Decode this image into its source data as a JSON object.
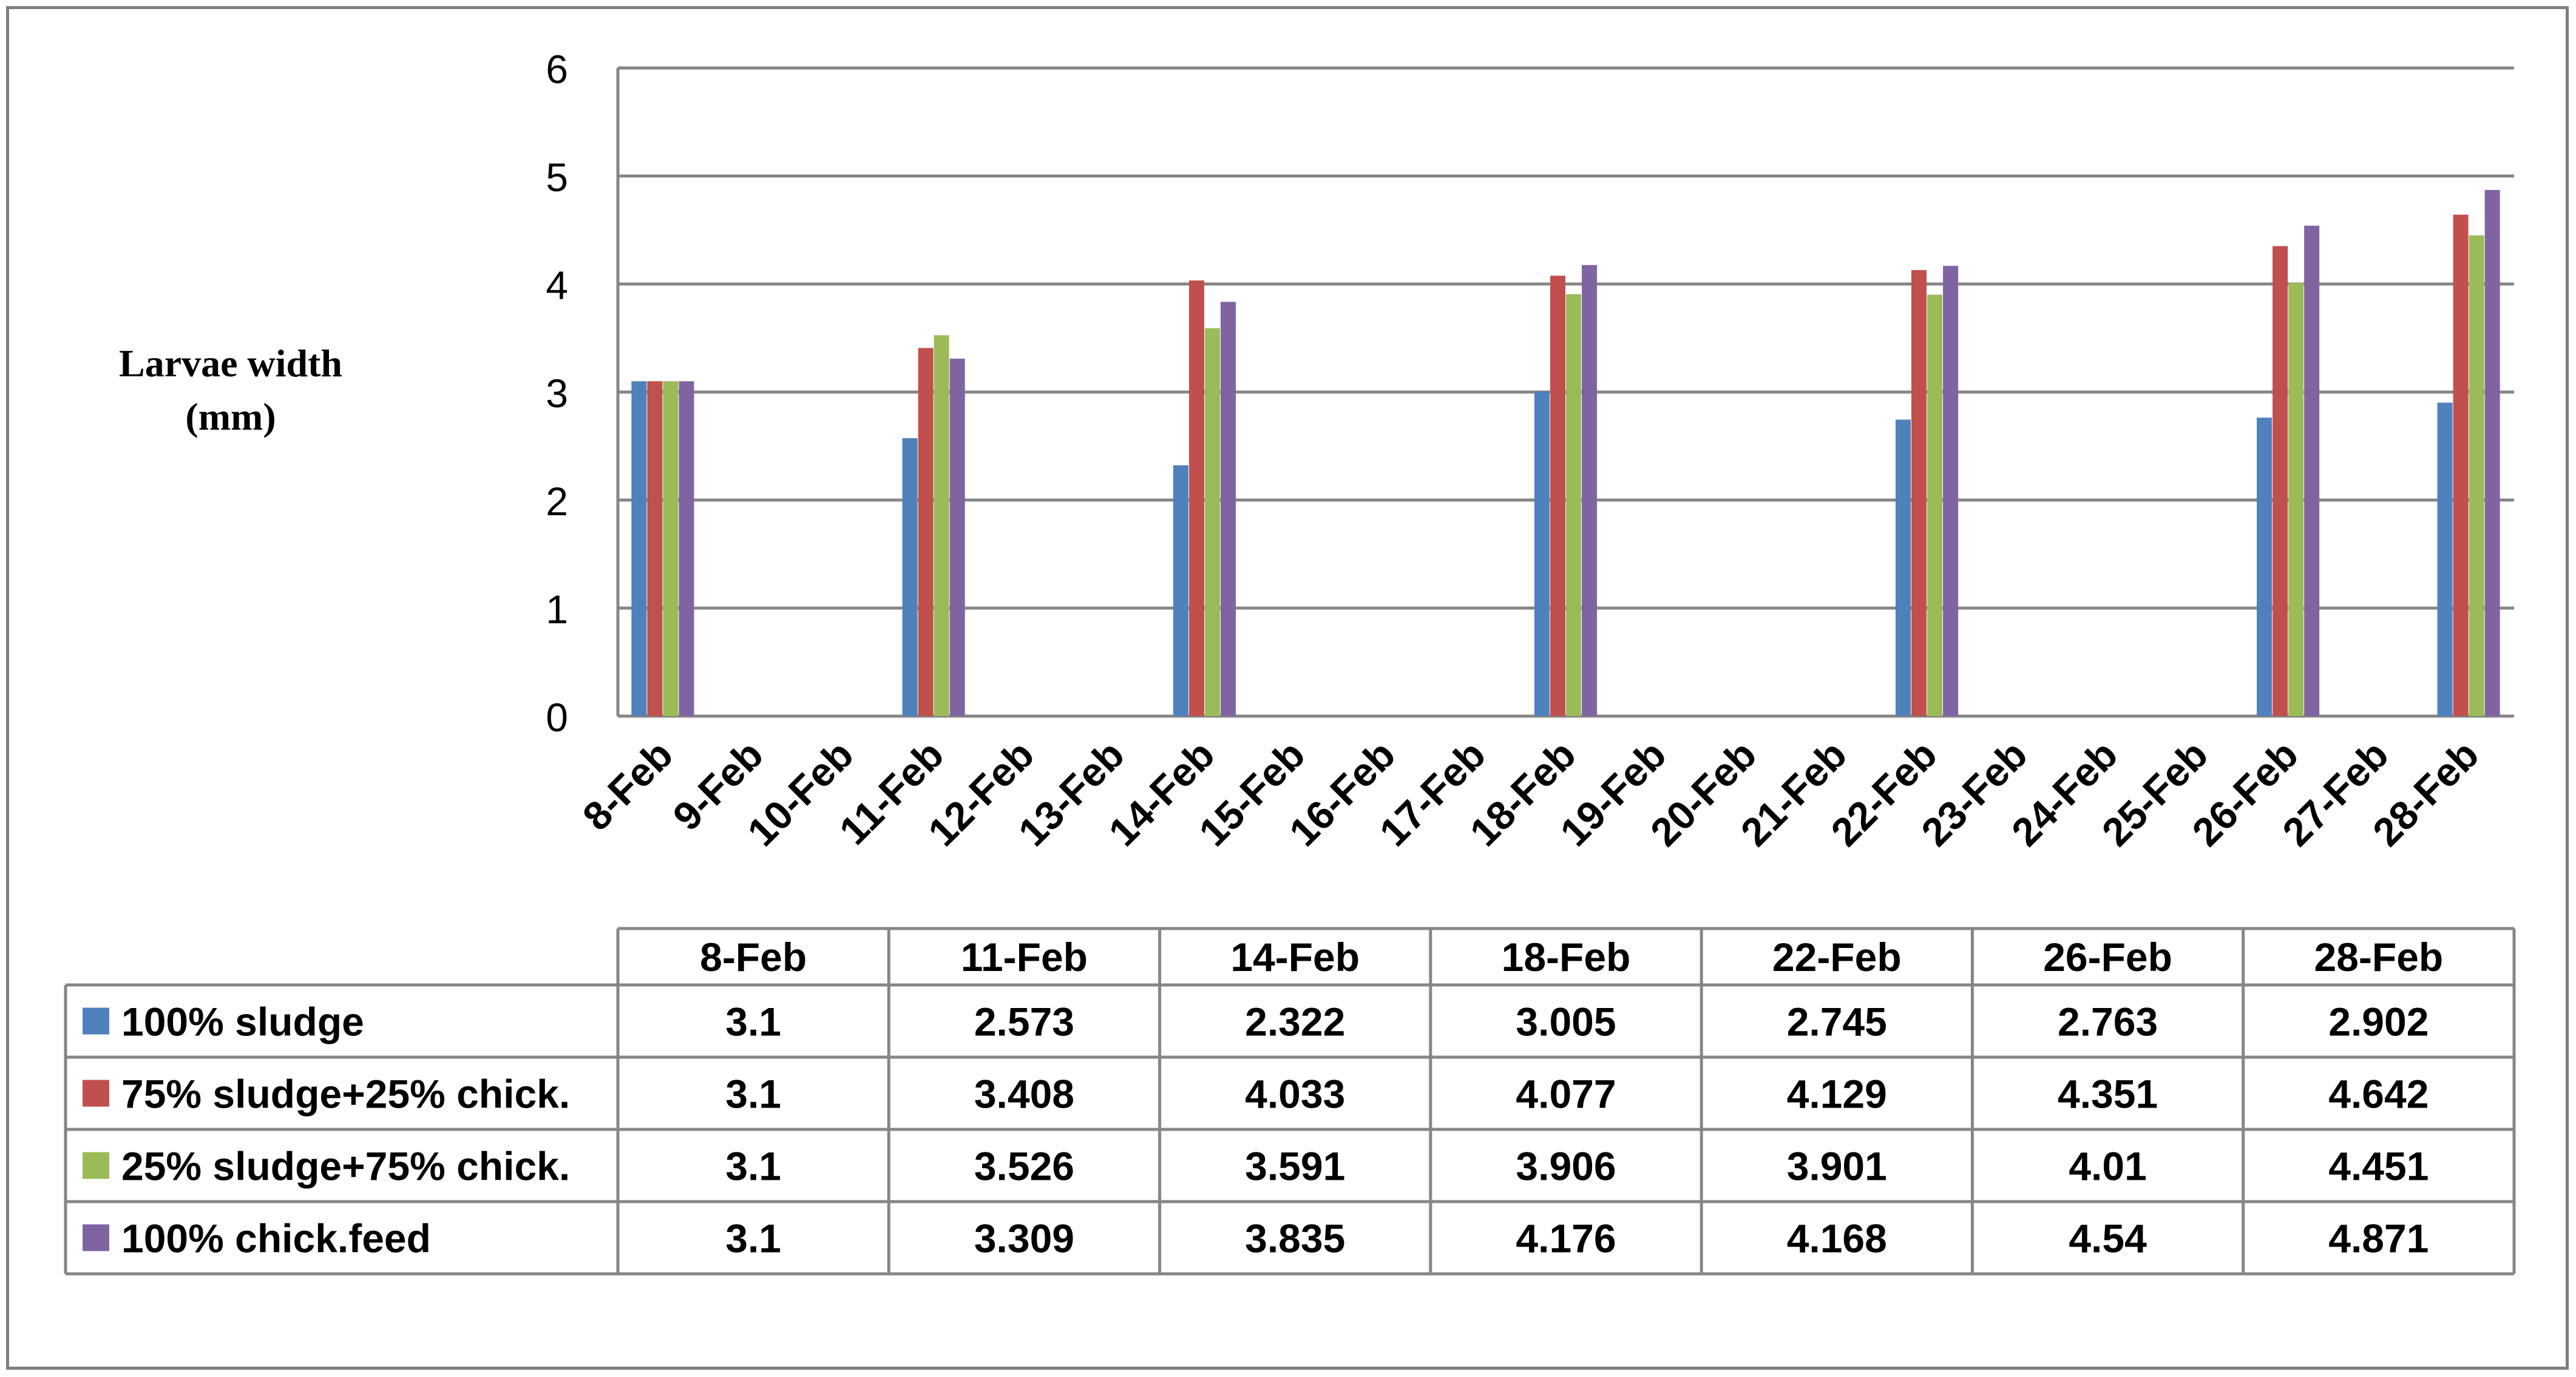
{
  "chart_data": {
    "type": "bar",
    "ylabel": "Larvae width (mm)",
    "ylabel_lines": [
      "Larvae width",
      "(mm)"
    ],
    "ylim": [
      0,
      6
    ],
    "yticks": [
      "0",
      "1",
      "2",
      "3",
      "4",
      "5",
      "6"
    ],
    "grid": true,
    "x_axis_labels": [
      "8-Feb",
      "9-Feb",
      "10-Feb",
      "11-Feb",
      "12-Feb",
      "13-Feb",
      "14-Feb",
      "15-Feb",
      "16-Feb",
      "17-Feb",
      "18-Feb",
      "19-Feb",
      "20-Feb",
      "21-Feb",
      "22-Feb",
      "23-Feb",
      "24-Feb",
      "25-Feb",
      "26-Feb",
      "27-Feb",
      "28-Feb"
    ],
    "categories": [
      "8-Feb",
      "11-Feb",
      "14-Feb",
      "18-Feb",
      "22-Feb",
      "26-Feb",
      "28-Feb"
    ],
    "series": [
      {
        "name": "100% sludge",
        "color": "#4f81bd",
        "values": [
          3.1,
          2.573,
          2.322,
          3.005,
          2.745,
          2.763,
          2.902
        ],
        "labels": [
          "3.1",
          "2.573",
          "2.322",
          "3.005",
          "2.745",
          "2.763",
          "2.902"
        ]
      },
      {
        "name": "75% sludge+25% chick.",
        "color": "#c0504d",
        "values": [
          3.1,
          3.408,
          4.033,
          4.077,
          4.129,
          4.351,
          4.642
        ],
        "labels": [
          "3.1",
          "3.408",
          "4.033",
          "4.077",
          "4.129",
          "4.351",
          "4.642"
        ]
      },
      {
        "name": "25% sludge+75% chick.",
        "color": "#9bbb59",
        "values": [
          3.1,
          3.526,
          3.591,
          3.906,
          3.901,
          4.01,
          4.451
        ],
        "labels": [
          "3.1",
          "3.526",
          "3.591",
          "3.906",
          "3.901",
          "4.01",
          "4.451"
        ]
      },
      {
        "name": "100% chick.feed",
        "color": "#8064a2",
        "values": [
          3.1,
          3.309,
          3.835,
          4.176,
          4.168,
          4.54,
          4.871
        ],
        "labels": [
          "3.1",
          "3.309",
          "3.835",
          "4.176",
          "4.168",
          "4.54",
          "4.871"
        ]
      }
    ]
  }
}
